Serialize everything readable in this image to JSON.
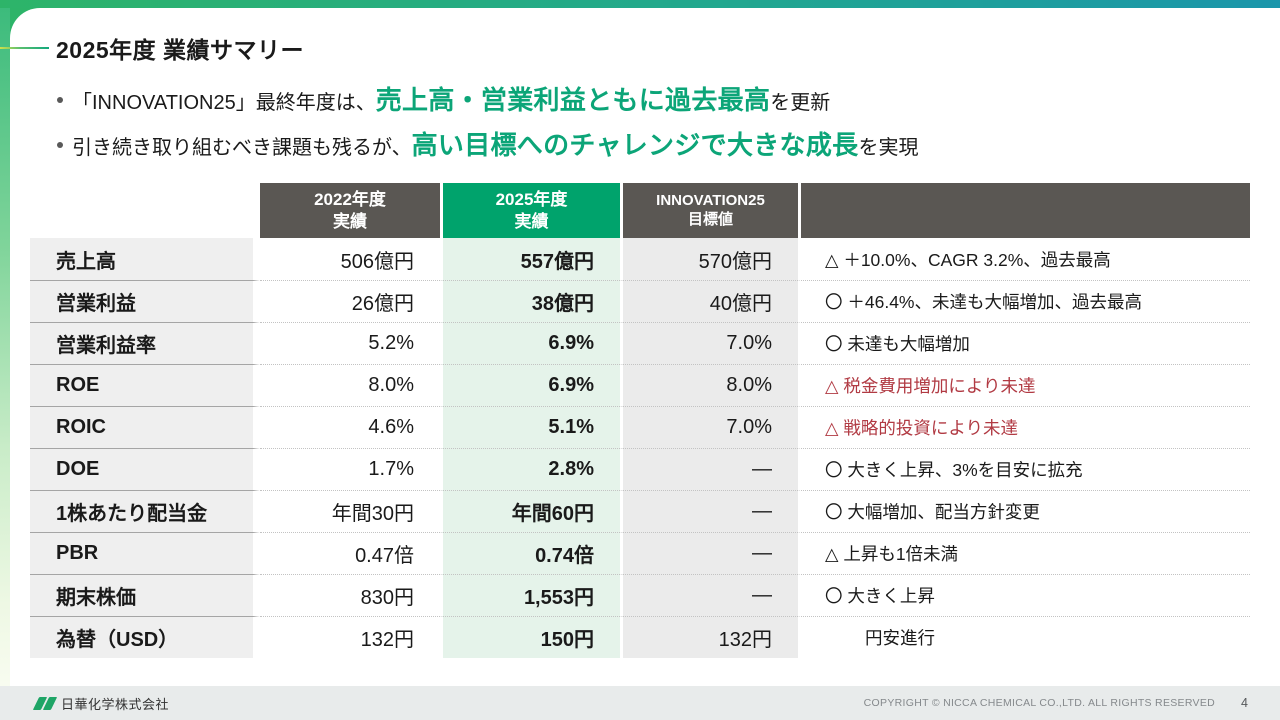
{
  "slide": {
    "title": "2025年度 業績サマリー",
    "bullets": [
      {
        "prefix": "「INNOVATION25」最終年度は、",
        "highlight": "売上高・営業利益ともに過去最高",
        "suffix": "を更新"
      },
      {
        "prefix": "引き続き取り組むべき課題も残るが、",
        "highlight": "高い目標へのチャレンジで大きな成長",
        "suffix": "を実現"
      }
    ]
  },
  "table": {
    "columns": [
      {
        "line1": "2022年度",
        "line2": "実績"
      },
      {
        "line1": "2025年度",
        "line2": "実績"
      },
      {
        "line1": "INNOVATION25",
        "line2": "目標値"
      }
    ],
    "rows": [
      {
        "label": "売上高",
        "fy2022": "506億円",
        "fy2025": "557億円",
        "target": "570億円",
        "note": "△ ＋10.0%、CAGR 3.2%、過去最高",
        "red": false,
        "indent": false
      },
      {
        "label": "営業利益",
        "fy2022": "26億円",
        "fy2025": "38億円",
        "target": "40億円",
        "note": "〇 ＋46.4%、未達も大幅増加、過去最高",
        "red": false,
        "indent": false
      },
      {
        "label": "営業利益率",
        "fy2022": "5.2%",
        "fy2025": "6.9%",
        "target": "7.0%",
        "note": "〇 未達も大幅増加",
        "red": false,
        "indent": false
      },
      {
        "label": "ROE",
        "fy2022": "8.0%",
        "fy2025": "6.9%",
        "target": "8.0%",
        "note": "△ 税金費用増加により未達",
        "red": true,
        "indent": false
      },
      {
        "label": "ROIC",
        "fy2022": "4.6%",
        "fy2025": "5.1%",
        "target": "7.0%",
        "note": "△ 戦略的投資により未達",
        "red": true,
        "indent": false
      },
      {
        "label": "DOE",
        "fy2022": "1.7%",
        "fy2025": "2.8%",
        "target": "—",
        "note": "〇 大きく上昇、3%を目安に拡充",
        "red": false,
        "indent": false
      },
      {
        "label": "1株あたり配当金",
        "fy2022": "年間30円",
        "fy2025": "年間60円",
        "target": "—",
        "note": "〇 大幅増加、配当方針変更",
        "red": false,
        "indent": false
      },
      {
        "label": "PBR",
        "fy2022": "0.47倍",
        "fy2025": "0.74倍",
        "target": "—",
        "note": "△ 上昇も1倍未満",
        "red": false,
        "indent": false
      },
      {
        "label": "期末株価",
        "fy2022": "830円",
        "fy2025": "1,553円",
        "target": "—",
        "note": "〇 大きく上昇",
        "red": false,
        "indent": false
      },
      {
        "label": "為替（USD）",
        "fy2022": "132円",
        "fy2025": "150円",
        "target": "132円",
        "note": "円安進行",
        "red": false,
        "indent": true
      }
    ]
  },
  "footer": {
    "company": "日華化学株式会社",
    "copyright": "COPYRIGHT © NICCA CHEMICAL CO.,LTD. ALL RIGHTS RESERVED",
    "page": "4"
  },
  "colors": {
    "accent_green": "#00a36c",
    "highlight_text": "#0ca578",
    "header_gray": "#5a5753",
    "note_red": "#b13a43",
    "light_green_bg": "#e5f3ea"
  }
}
